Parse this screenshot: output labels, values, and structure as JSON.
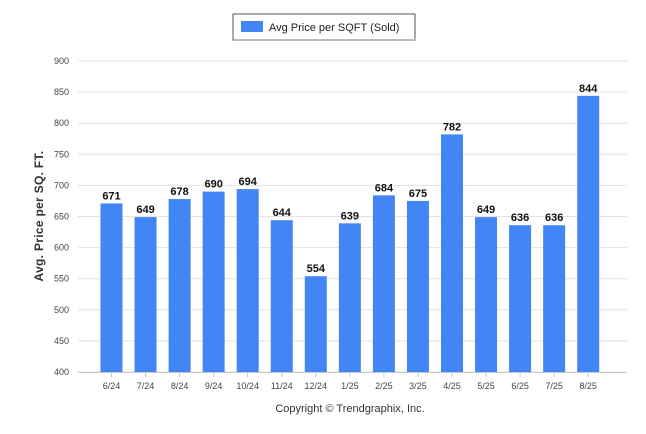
{
  "chart_data": {
    "type": "bar",
    "categories": [
      "6/24",
      "7/24",
      "8/24",
      "9/24",
      "10/24",
      "11/24",
      "12/24",
      "1/25",
      "2/25",
      "3/25",
      "4/25",
      "5/25",
      "6/25",
      "7/25",
      "8/25"
    ],
    "series": [
      {
        "name": "Avg Price per SQFT (Sold)",
        "values": [
          671,
          649,
          678,
          690,
          694,
          644,
          554,
          639,
          684,
          675,
          782,
          649,
          636,
          636,
          844
        ]
      }
    ],
    "title": "",
    "xlabel": "",
    "ylabel": "Avg. Price per SQ. FT.",
    "ylim": [
      400,
      900
    ],
    "yticks": [
      400,
      450,
      500,
      550,
      600,
      650,
      700,
      750,
      800,
      850,
      900
    ],
    "grid": true,
    "legend_position": "top-center",
    "data_labels": true,
    "bar_color": "#4285f4",
    "footer": "Copyright © Trendgraphix, Inc."
  }
}
